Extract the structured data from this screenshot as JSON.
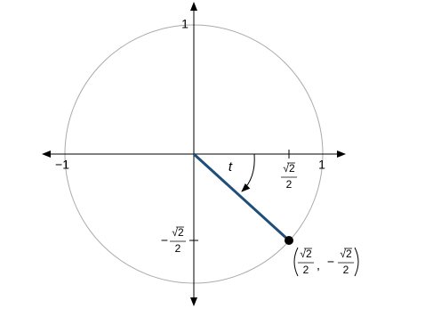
{
  "axis_labels": {
    "y_top": "1",
    "x_left": "−1",
    "x_right": "1"
  },
  "angle_label": "t",
  "x_tick_label": {
    "numerator": "√2",
    "denominator": "2"
  },
  "y_tick_label": {
    "sign": "−",
    "numerator": "√2",
    "denominator": "2"
  },
  "point_label": {
    "x": {
      "numerator": "√2",
      "denominator": "2"
    },
    "separator": ",",
    "y": {
      "sign": "−",
      "numerator": "√2",
      "denominator": "2"
    }
  }
}
